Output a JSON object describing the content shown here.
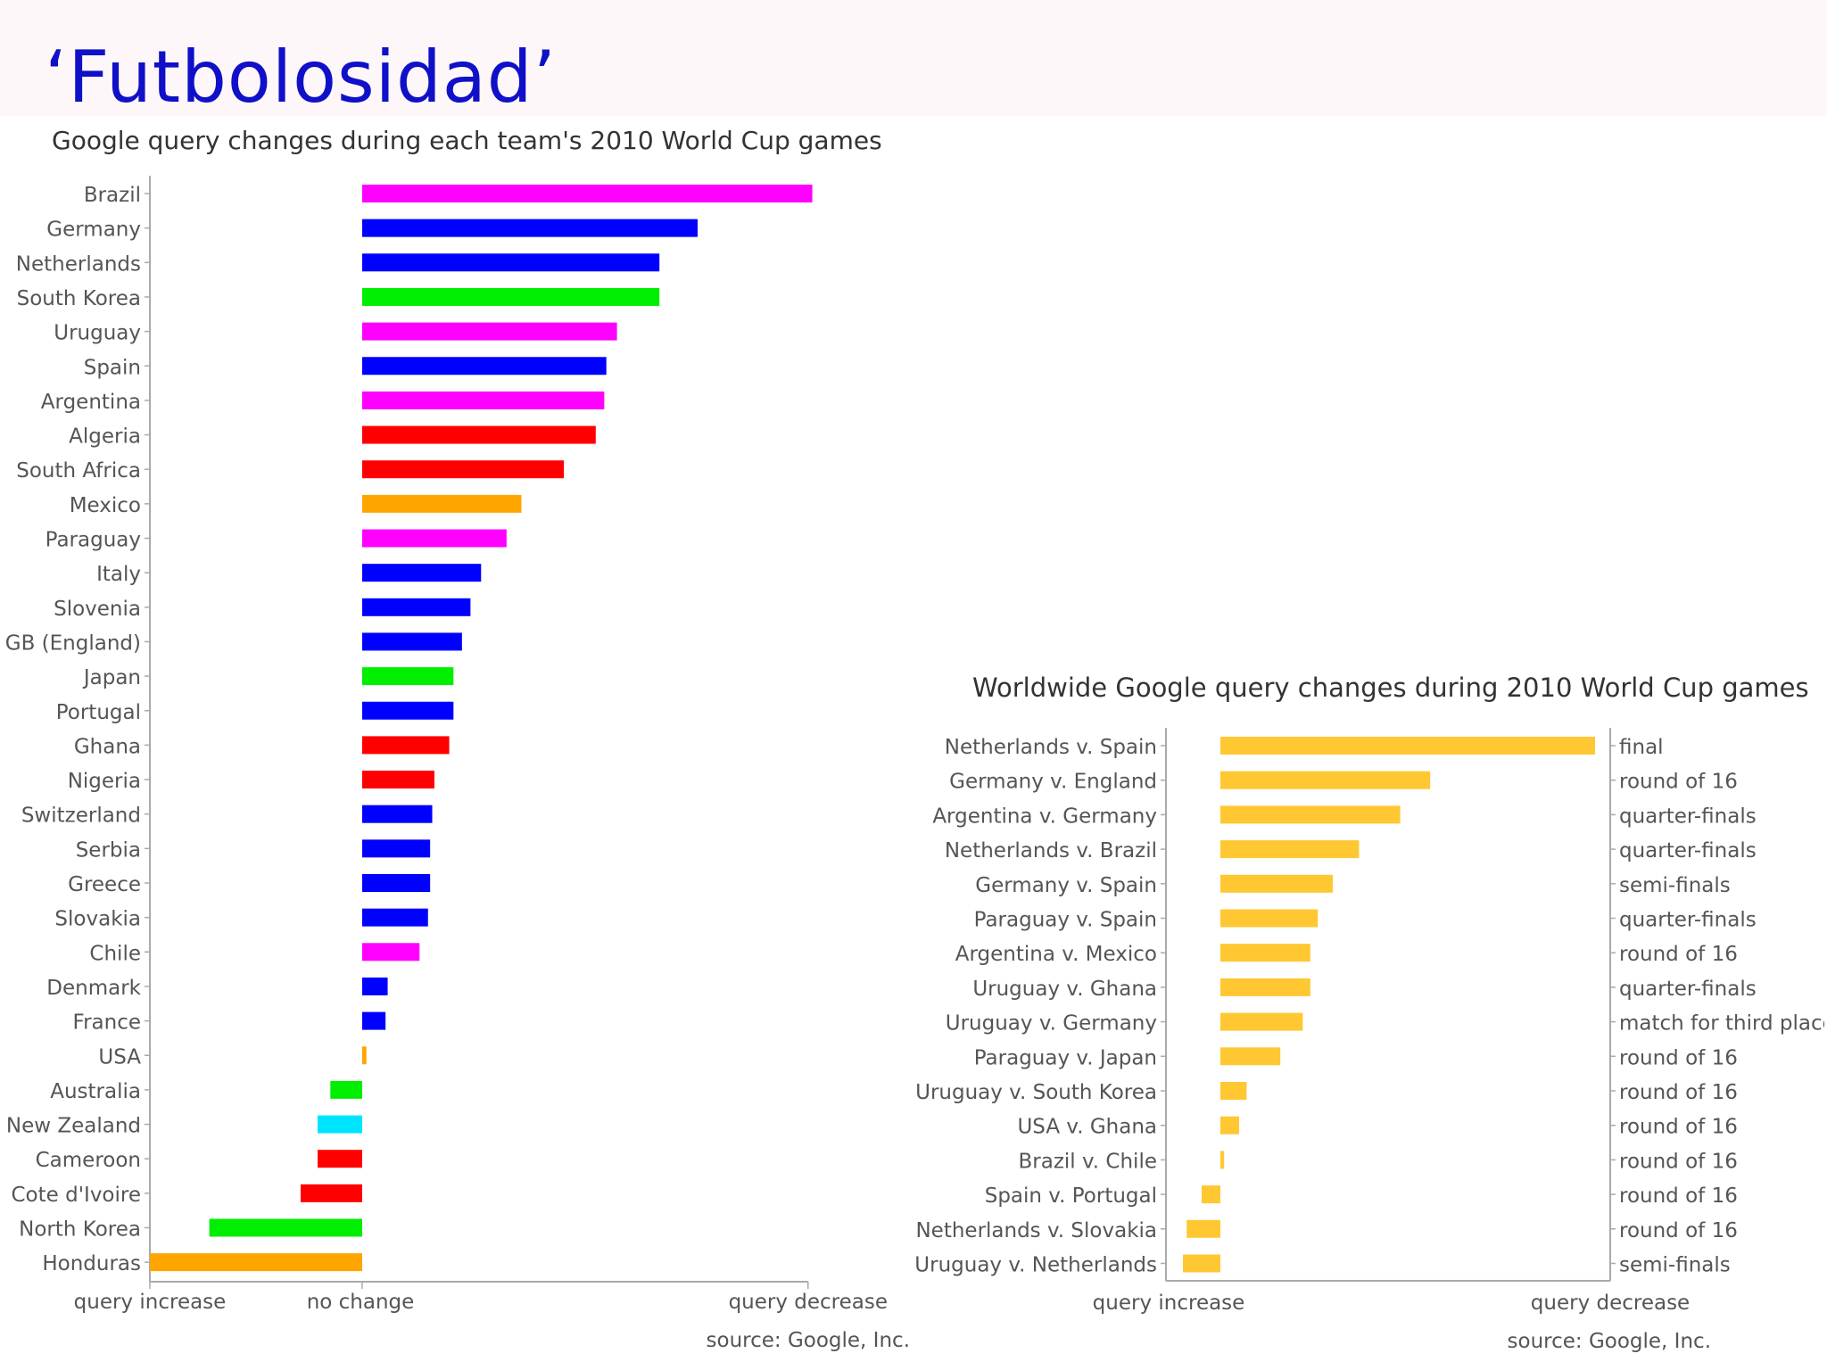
{
  "slide": {
    "title": "‘Futbolosidad’"
  },
  "chart_data": [
    {
      "type": "bar",
      "orientation": "horizontal",
      "title": "Google query changes during each team's 2010 World Cup games",
      "xlabels": {
        "left": "query increase",
        "center": "no change",
        "right": "query decrease"
      },
      "source": "source: Google, Inc.",
      "xlim": [
        -1.0,
        2.1
      ],
      "grid": false,
      "categories": [
        "Brazil",
        "Germany",
        "Netherlands",
        "South Korea",
        "Uruguay",
        "Spain",
        "Argentina",
        "Algeria",
        "South Africa",
        "Mexico",
        "Paraguay",
        "Italy",
        "Slovenia",
        "GB (England)",
        "Japan",
        "Portugal",
        "Ghana",
        "Nigeria",
        "Switzerland",
        "Serbia",
        "Greece",
        "Slovakia",
        "Chile",
        "Denmark",
        "France",
        "USA",
        "Australia",
        "New Zealand",
        "Cameroon",
        "Cote d'Ivoire",
        "North Korea",
        "Honduras"
      ],
      "values": [
        2.12,
        1.58,
        1.4,
        1.4,
        1.2,
        1.15,
        1.14,
        1.1,
        0.95,
        0.75,
        0.68,
        0.56,
        0.51,
        0.47,
        0.43,
        0.43,
        0.41,
        0.34,
        0.33,
        0.32,
        0.32,
        0.31,
        0.27,
        0.12,
        0.11,
        0.02,
        -0.15,
        -0.21,
        -0.21,
        -0.29,
        -0.72,
        -1.0
      ],
      "colors": [
        "#ff00ff",
        "#0000ff",
        "#0000ff",
        "#00ee00",
        "#ff00ff",
        "#0000ff",
        "#ff00ff",
        "#ff0000",
        "#ff0000",
        "#ffa500",
        "#ff00ff",
        "#0000ff",
        "#0000ff",
        "#0000ff",
        "#00ee00",
        "#0000ff",
        "#ff0000",
        "#ff0000",
        "#0000ff",
        "#0000ff",
        "#0000ff",
        "#0000ff",
        "#ff00ff",
        "#0000ff",
        "#0000ff",
        "#ffa500",
        "#00ee00",
        "#00e5ff",
        "#ff0000",
        "#ff0000",
        "#00ee00",
        "#ffa500"
      ]
    },
    {
      "type": "bar",
      "orientation": "horizontal",
      "title": "Worldwide Google query changes during 2010 World Cup games",
      "xlabels": {
        "left": "query increase",
        "right": "query decrease"
      },
      "source": "source: Google, Inc.",
      "xlim": [
        -0.15,
        1.0
      ],
      "grid": false,
      "bar_color": "#ffc832",
      "categories": [
        "Netherlands v. Spain",
        "Germany v. England",
        "Argentina v. Germany",
        "Netherlands v. Brazil",
        "Germany v. Spain",
        "Paraguay v. Spain",
        "Argentina v. Mexico",
        "Uruguay v. Ghana",
        "Uruguay v. Germany",
        "Paraguay v. Japan",
        "Uruguay v. South Korea",
        "USA v. Ghana",
        "Brazil v. Chile",
        "Spain v. Portugal",
        "Netherlands v. Slovakia",
        "Uruguay v. Netherlands"
      ],
      "stages": [
        "final",
        "round of 16",
        "quarter-finals",
        "quarter-finals",
        "semi-finals",
        "quarter-finals",
        "round of 16",
        "quarter-finals",
        "match for third place",
        "round of 16",
        "round of 16",
        "round of 16",
        "round of 16",
        "round of 16",
        "round of 16",
        "semi-finals"
      ],
      "values": [
        1.0,
        0.56,
        0.48,
        0.37,
        0.3,
        0.26,
        0.24,
        0.24,
        0.22,
        0.16,
        0.07,
        0.05,
        0.01,
        -0.05,
        -0.09,
        -0.1
      ]
    }
  ]
}
